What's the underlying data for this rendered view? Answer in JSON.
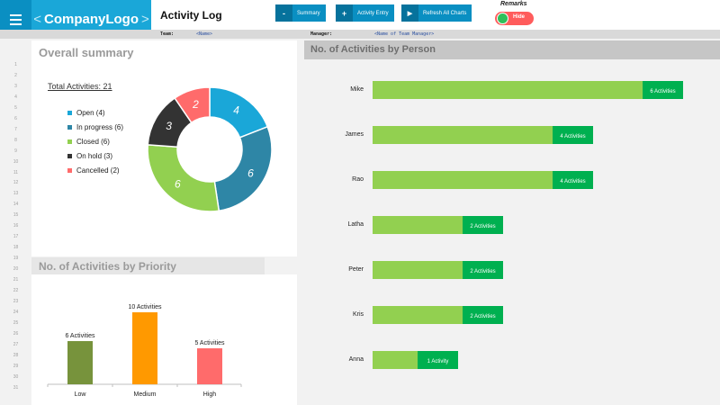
{
  "header": {
    "logo_left": "<",
    "logo_text": "CompanyLogo",
    "logo_right": ">",
    "title": "Activity Log",
    "buttons": [
      {
        "icon": "-",
        "label": "Summary"
      },
      {
        "icon": "+",
        "label": "Activity Entry"
      },
      {
        "icon": "▶",
        "label": "Refresh All Charts"
      }
    ],
    "remarks_label": "Remarks",
    "toggle_label": "Hide"
  },
  "subheader": {
    "team_label": "Team:",
    "team_value": "<Name>",
    "manager_label": "Manager:",
    "manager_value": "<Name of Team Manager>"
  },
  "row_numbers": [
    "1",
    "2",
    "3",
    "4",
    "5",
    "6",
    "7",
    "8",
    "9",
    "10",
    "11",
    "12",
    "13",
    "14",
    "15",
    "16",
    "17",
    "18",
    "19",
    "20",
    "21",
    "22",
    "23",
    "24",
    "25",
    "26",
    "27",
    "28",
    "29",
    "30",
    "31"
  ],
  "overall": {
    "heading": "Overall summary",
    "total": "Total Activities: 21",
    "legend": [
      {
        "label": "Open (4)",
        "color": "#1aa7d8"
      },
      {
        "label": "In progress (6)",
        "color": "#2e86a6"
      },
      {
        "label": "Closed (6)",
        "color": "#92d050"
      },
      {
        "label": "On hold (3)",
        "color": "#333333"
      },
      {
        "label": "Cancelled (2)",
        "color": "#ff6b6b"
      }
    ]
  },
  "priority": {
    "heading": "No. of Activities by Priority"
  },
  "person": {
    "heading": "No. of Activities by Person"
  },
  "chart_data": [
    {
      "type": "pie",
      "categories": [
        "Open",
        "In progress",
        "Closed",
        "On hold",
        "Cancelled"
      ],
      "values": [
        4,
        6,
        6,
        3,
        2
      ],
      "data_labels": [
        "4",
        "6",
        "6",
        "3",
        "2"
      ],
      "colors": [
        "#1aa7d8",
        "#2e86a6",
        "#92d050",
        "#333333",
        "#ff6b6b"
      ]
    },
    {
      "type": "bar",
      "categories": [
        "Low",
        "Medium",
        "High"
      ],
      "values": [
        6,
        10,
        5
      ],
      "data_labels": [
        "6 Activities",
        "10 Activities",
        "5 Activities"
      ],
      "colors": [
        "#77933c",
        "#ff9900",
        "#ff6b6b"
      ],
      "ylim": [
        0,
        10
      ]
    },
    {
      "type": "bar",
      "orientation": "horizontal",
      "categories": [
        "Mike",
        "James",
        "Rao",
        "Latha",
        "Peter",
        "Kris",
        "Anna"
      ],
      "values": [
        6,
        4,
        4,
        2,
        2,
        2,
        1
      ],
      "data_labels": [
        "6 Activities",
        "4 Activities",
        "4 Activities",
        "2 Activities",
        "2 Activities",
        "2 Activities",
        "1 Activity"
      ],
      "colors": [
        "#92d050",
        "#00b050"
      ],
      "xlim": [
        0,
        6
      ]
    }
  ]
}
